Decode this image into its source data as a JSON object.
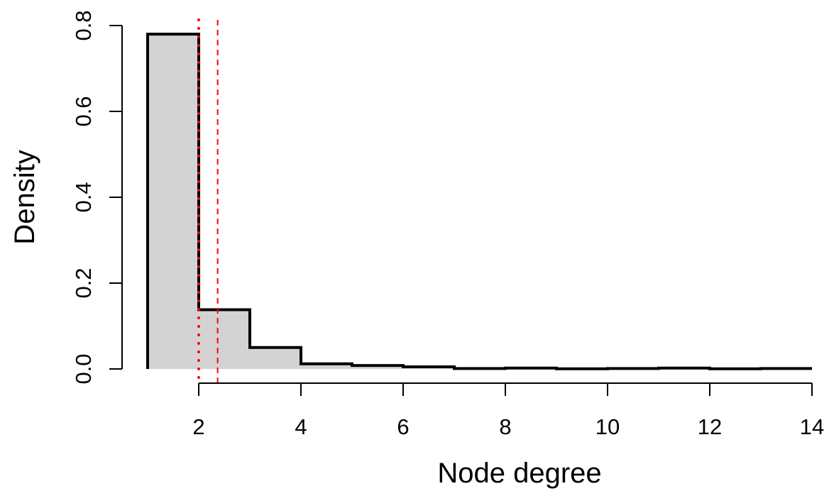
{
  "chart_data": {
    "type": "histogram",
    "xlabel": "Node degree",
    "ylabel": "Density",
    "xlim": [
      1,
      14
    ],
    "ylim": [
      0,
      0.8
    ],
    "x_ticks": [
      2,
      4,
      6,
      8,
      10,
      12,
      14
    ],
    "x_tick_labels": [
      "2",
      "4",
      "6",
      "8",
      "10",
      "12",
      "14"
    ],
    "y_ticks": [
      0.0,
      0.2,
      0.4,
      0.6,
      0.8
    ],
    "y_tick_labels": [
      "0.0",
      "0.2",
      "0.4",
      "0.6",
      "0.8"
    ],
    "bins": [
      {
        "from": 1,
        "to": 2,
        "density": 0.78
      },
      {
        "from": 2,
        "to": 3,
        "density": 0.138
      },
      {
        "from": 3,
        "to": 4,
        "density": 0.05
      },
      {
        "from": 4,
        "to": 5,
        "density": 0.012
      },
      {
        "from": 5,
        "to": 6,
        "density": 0.008
      },
      {
        "from": 6,
        "to": 7,
        "density": 0.005
      },
      {
        "from": 7,
        "to": 8,
        "density": 0.001
      },
      {
        "from": 8,
        "to": 9,
        "density": 0.002
      },
      {
        "from": 9,
        "to": 10,
        "density": 0.0005
      },
      {
        "from": 10,
        "to": 11,
        "density": 0.001
      },
      {
        "from": 11,
        "to": 12,
        "density": 0.002
      },
      {
        "from": 12,
        "to": 13,
        "density": 0.0005
      },
      {
        "from": 13,
        "to": 14,
        "density": 0.001
      }
    ],
    "reference_lines": [
      {
        "x": 2,
        "style": "dotted",
        "color": "#ff0000"
      },
      {
        "x": 2.37,
        "style": "dashed",
        "color": "#ff0000"
      }
    ],
    "colors": {
      "fill": "#d3d3d3",
      "outline": "#000000",
      "reference": "#ff0000"
    },
    "grid": false,
    "legend": "none"
  }
}
